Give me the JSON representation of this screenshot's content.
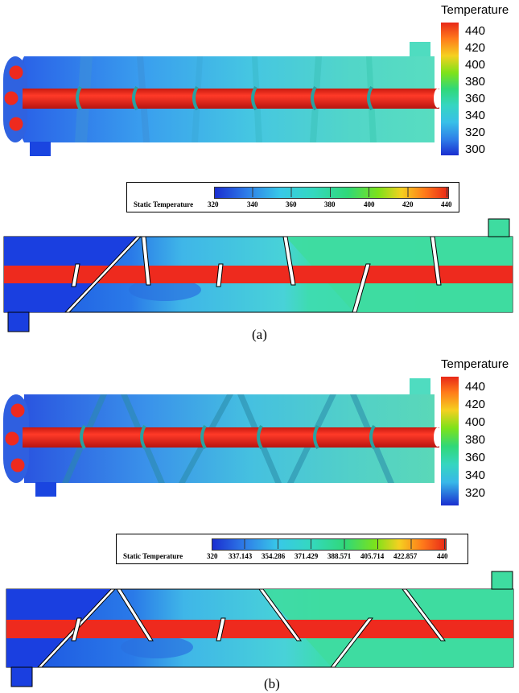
{
  "panel_a": {
    "legend_title": "Temperature",
    "legend_ticks": [
      "440",
      "420",
      "400",
      "380",
      "360",
      "340",
      "320",
      "300"
    ],
    "scalebar_title": "Static Temperature",
    "scalebar_ticks": [
      "320",
      "340",
      "360",
      "380",
      "400",
      "420",
      "440"
    ],
    "caption": "(a)"
  },
  "panel_b": {
    "legend_title": "Temperature",
    "legend_ticks": [
      "440",
      "420",
      "400",
      "380",
      "360",
      "340",
      "320"
    ],
    "scalebar_title": "Static Temperature",
    "scalebar_ticks": [
      "320",
      "337.143",
      "354.286",
      "371.429",
      "388.571",
      "405.714",
      "422.857",
      "440"
    ],
    "caption": "(b)"
  },
  "colors": {
    "tube": "#ee2a1e",
    "cold": "#1a4fe0",
    "mid": "#35c8e0",
    "warm": "#3ddc9c"
  }
}
